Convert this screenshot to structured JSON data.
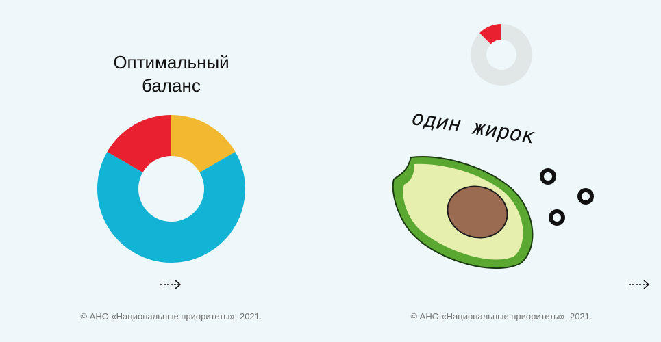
{
  "left": {
    "title_lines": [
      "Оптимальный",
      "баланс"
    ],
    "donut": {
      "segments": [
        {
          "color": "#f2b82f",
          "value": 1
        },
        {
          "color": "#13b3d6",
          "value": 4
        },
        {
          "color": "#e8202f",
          "value": 1
        }
      ]
    },
    "footer": "© АНО «Национальные приоритеты», 2021."
  },
  "right": {
    "donut": {
      "segments": [
        {
          "color": "#e1e6e6",
          "value": 7
        },
        {
          "color": "#e8202f",
          "value": 1
        }
      ]
    },
    "caption": "один жирок",
    "footer": "© АНО «Национальные приоритеты», 2021."
  }
}
